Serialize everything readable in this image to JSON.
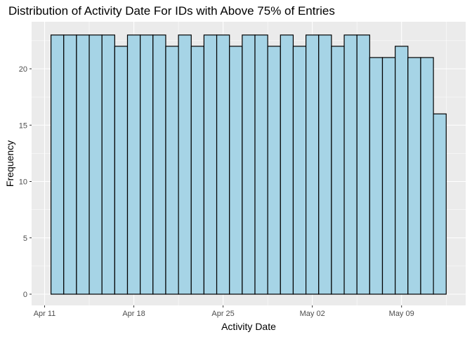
{
  "chart_data": {
    "type": "bar",
    "title": "Distribution of Activity Date For IDs with Above 75% of Entries",
    "xlabel": "Activity Date",
    "ylabel": "Frequency",
    "x": [
      "Apr 12",
      "Apr 13",
      "Apr 14",
      "Apr 15",
      "Apr 16",
      "Apr 17",
      "Apr 18",
      "Apr 19",
      "Apr 20",
      "Apr 21",
      "Apr 22",
      "Apr 23",
      "Apr 24",
      "Apr 25",
      "Apr 26",
      "Apr 27",
      "Apr 28",
      "Apr 29",
      "Apr 30",
      "May 01",
      "May 02",
      "May 03",
      "May 04",
      "May 05",
      "May 06",
      "May 07",
      "May 08",
      "May 09",
      "May 10",
      "May 11",
      "May 12"
    ],
    "values": [
      23,
      23,
      23,
      23,
      23,
      22,
      23,
      23,
      23,
      22,
      23,
      22,
      23,
      23,
      22,
      23,
      23,
      22,
      23,
      22,
      23,
      23,
      22,
      23,
      23,
      21,
      21,
      22,
      21,
      21,
      16
    ],
    "ylim": [
      0,
      23
    ],
    "y_ticks": [
      0,
      5,
      10,
      15,
      20
    ],
    "x_ticks": [
      "Apr 11",
      "Apr 18",
      "Apr 25",
      "May 02",
      "May 09"
    ],
    "bar_fill": "#a6d4e6",
    "bar_outline": "#000000",
    "panel_background": "#ebebeb",
    "grid": true
  }
}
